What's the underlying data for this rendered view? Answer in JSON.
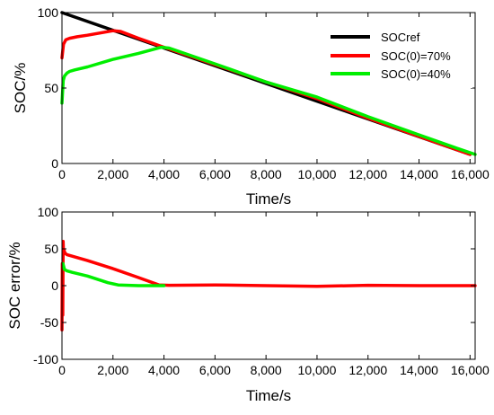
{
  "chart_data": [
    {
      "type": "line",
      "title": "",
      "xlabel": "Time/s",
      "ylabel": "SOC/%",
      "xlim": [
        0,
        16200
      ],
      "ylim": [
        0,
        100
      ],
      "xticks": [
        0,
        2000,
        4000,
        6000,
        8000,
        10000,
        12000,
        14000,
        16000
      ],
      "xtick_labels": [
        "0",
        "2,000",
        "4,000",
        "6,000",
        "8,000",
        "10,000",
        "12,000",
        "14,000",
        "16,000"
      ],
      "yticks": [
        0,
        50,
        100
      ],
      "ytick_labels": [
        "0",
        "50",
        "100"
      ],
      "grid": false,
      "legend_position": "top-right",
      "series": [
        {
          "name": "SOCref",
          "color": "#000000",
          "x": [
            0,
            16000
          ],
          "y": [
            100,
            6
          ]
        },
        {
          "name": "SOC(0)=70%",
          "color": "#ff0000",
          "x": [
            0,
            60,
            150,
            300,
            600,
            1000,
            1500,
            2000,
            2300,
            3000,
            4000,
            6000,
            8000,
            10000,
            12000,
            14000,
            15000,
            16000
          ],
          "y": [
            70,
            79,
            82,
            83,
            84,
            85,
            86.5,
            88,
            87.5,
            83,
            77,
            65.5,
            54,
            43,
            30,
            18,
            12,
            6
          ]
        },
        {
          "name": "SOC(0)=40%",
          "color": "#00ee00",
          "x": [
            0,
            50,
            100,
            200,
            300,
            500,
            1000,
            2000,
            3000,
            3900,
            4200,
            6000,
            8000,
            10000,
            12000,
            14000,
            15000,
            15500,
            16200
          ],
          "y": [
            40,
            55,
            58,
            60,
            61,
            62,
            64,
            69,
            73,
            77,
            76.5,
            66,
            54,
            44,
            31,
            19,
            13,
            10,
            6
          ]
        }
      ]
    },
    {
      "type": "line",
      "title": "",
      "xlabel": "Time/s",
      "ylabel": "SOC error/%",
      "xlim": [
        0,
        16200
      ],
      "ylim": [
        -100,
        100
      ],
      "xticks": [
        0,
        2000,
        4000,
        6000,
        8000,
        10000,
        12000,
        14000,
        16000
      ],
      "xtick_labels": [
        "0",
        "2,000",
        "4,000",
        "6,000",
        "8,000",
        "10,000",
        "12,000",
        "14,000",
        "16,000"
      ],
      "yticks": [
        -100,
        -50,
        0,
        50,
        100
      ],
      "ytick_labels": [
        "-100",
        "-50",
        "0",
        "50",
        "100"
      ],
      "grid": false,
      "series": [
        {
          "color": "#ff0000",
          "x": [
            0,
            15,
            30,
            45,
            60,
            80,
            120,
            200,
            400,
            1000,
            2000,
            3000,
            3800,
            4200,
            6000,
            8000,
            10000,
            12000,
            14000,
            16200
          ],
          "y": [
            -60,
            30,
            -40,
            60,
            45,
            48,
            44,
            42,
            40,
            34,
            23,
            11,
            1,
            0.5,
            1,
            0,
            -1,
            0.5,
            0,
            0
          ]
        },
        {
          "color": "#00ee00",
          "x": [
            40,
            100,
            200,
            400,
            1000,
            1800,
            2200,
            3000,
            4000
          ],
          "y": [
            30,
            22,
            20,
            18,
            13,
            4,
            1,
            0,
            0
          ]
        }
      ]
    }
  ]
}
